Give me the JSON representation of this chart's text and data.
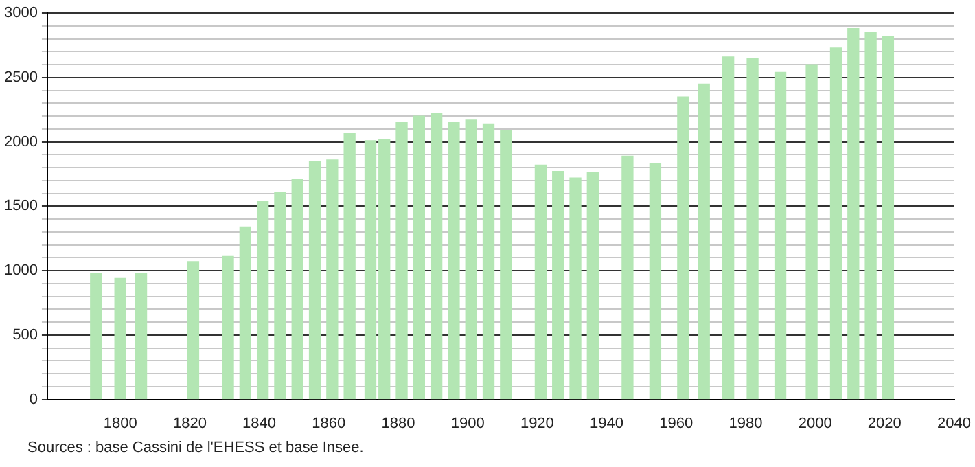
{
  "chart_data": {
    "type": "bar",
    "x": [
      1793,
      1800,
      1806,
      1821,
      1831,
      1836,
      1841,
      1846,
      1851,
      1856,
      1861,
      1866,
      1872,
      1876,
      1881,
      1886,
      1891,
      1896,
      1901,
      1906,
      1911,
      1921,
      1926,
      1931,
      1936,
      1946,
      1954,
      1962,
      1968,
      1975,
      1982,
      1990,
      1999,
      2006,
      2011,
      2016,
      2021
    ],
    "values": [
      980,
      940,
      980,
      1070,
      1110,
      1340,
      1540,
      1610,
      1710,
      1850,
      1860,
      2070,
      2010,
      2020,
      2150,
      2200,
      2220,
      2150,
      2170,
      2140,
      2090,
      1820,
      1770,
      1720,
      1760,
      1890,
      1830,
      2350,
      2450,
      2660,
      2650,
      2540,
      2600,
      2730,
      2880,
      2850,
      2820
    ],
    "color": "#b3e6b3",
    "xlim": [
      1779,
      2040
    ],
    "xticks": [
      1800,
      1820,
      1840,
      1860,
      1880,
      1900,
      1920,
      1940,
      1960,
      1980,
      2000,
      2020,
      2040
    ],
    "ylim": [
      0,
      3000
    ],
    "yticks": [
      0,
      {
        "value": 100,
        "label": null
      },
      {
        "value": 200,
        "label": null
      },
      {
        "value": 300,
        "label": null
      },
      {
        "value": 400,
        "label": null
      },
      500,
      {
        "value": 600,
        "label": null
      },
      {
        "value": 700,
        "label": null
      },
      {
        "value": 800,
        "label": null
      },
      {
        "value": 900,
        "label": null
      },
      1000,
      {
        "value": 1100,
        "label": null
      },
      {
        "value": 1200,
        "label": null
      },
      {
        "value": 1300,
        "label": null
      },
      {
        "value": 1400,
        "label": null
      },
      1500,
      {
        "value": 1600,
        "label": null
      },
      {
        "value": 1700,
        "label": null
      },
      {
        "value": 1800,
        "label": null
      },
      {
        "value": 1900,
        "label": null
      },
      2000,
      {
        "value": 2100,
        "label": null
      },
      {
        "value": 2200,
        "label": null
      },
      {
        "value": 2300,
        "label": null
      },
      {
        "value": 2400,
        "label": null
      },
      2500,
      {
        "value": 2600,
        "label": null
      },
      {
        "value": 2700,
        "label": null
      },
      {
        "value": 2800,
        "label": null
      },
      {
        "value": 2900,
        "label": null
      },
      3000
    ],
    "grid": "y",
    "legend": false,
    "annotations": [
      "Sources : base Cassini de l'EHESS et base Insee."
    ]
  }
}
